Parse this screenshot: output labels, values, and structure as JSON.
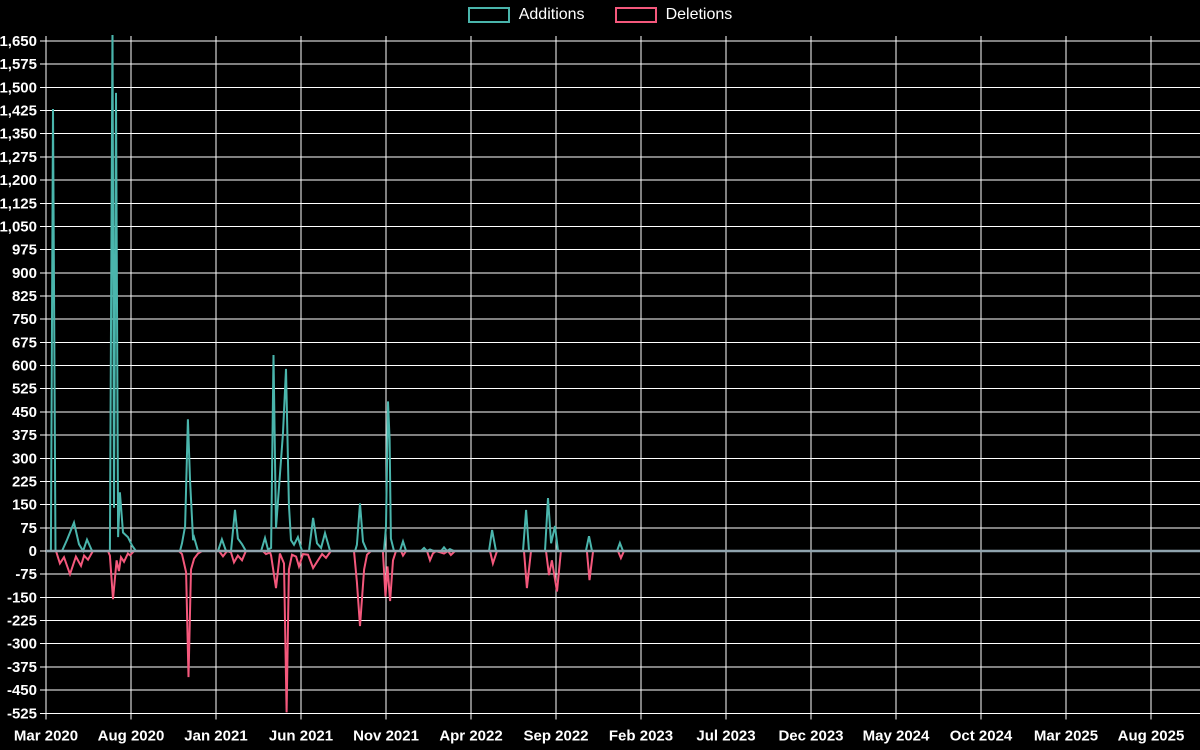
{
  "legend": {
    "additions_label": "Additions",
    "deletions_label": "Deletions"
  },
  "colors": {
    "background": "#000000",
    "grid": "#FFFFFF",
    "zero_axis": "#90A4AE",
    "text": "#FFFFFF",
    "additions": "#4AB5AC",
    "deletions": "#F4587C"
  },
  "chart_data": {
    "type": "line",
    "title": "",
    "legend_position": "top-center",
    "grid": true,
    "x_unit": "months since Mar 2020 (weekly samples)",
    "x_tick_labels": [
      "Mar 2020",
      "Aug 2020",
      "Jan 2021",
      "Jun 2021",
      "Nov 2021",
      "Apr 2022",
      "Sep 2022",
      "Feb 2023",
      "Jul 2023",
      "Dec 2023",
      "May 2024",
      "Oct 2024",
      "Mar 2025",
      "Aug 2025"
    ],
    "months_per_tick": 5,
    "y_axis": {
      "min": -525,
      "max": 1650,
      "step": 75
    },
    "series": [
      {
        "name": "Additions",
        "color_key": "additions",
        "points": [
          [
            0,
            0
          ],
          [
            0.29,
            0
          ],
          [
            0.41,
            1430
          ],
          [
            0.56,
            0
          ],
          [
            0.94,
            0
          ],
          [
            1.24,
            37
          ],
          [
            1.65,
            92
          ],
          [
            1.94,
            22
          ],
          [
            2.18,
            0
          ],
          [
            2.41,
            37
          ],
          [
            2.71,
            0
          ],
          [
            3.76,
            0
          ],
          [
            3.91,
            1700
          ],
          [
            4.0,
            140
          ],
          [
            4.12,
            1482
          ],
          [
            4.24,
            45
          ],
          [
            4.35,
            190
          ],
          [
            4.53,
            60
          ],
          [
            4.82,
            45
          ],
          [
            5.06,
            18
          ],
          [
            5.29,
            0
          ],
          [
            7.88,
            0
          ],
          [
            8.0,
            25
          ],
          [
            8.18,
            80
          ],
          [
            8.35,
            426
          ],
          [
            8.47,
            232
          ],
          [
            8.65,
            35
          ],
          [
            8.71,
            44
          ],
          [
            8.94,
            0
          ],
          [
            10.12,
            0
          ],
          [
            10.35,
            38
          ],
          [
            10.59,
            0
          ],
          [
            10.88,
            0
          ],
          [
            11.12,
            133
          ],
          [
            11.29,
            40
          ],
          [
            11.53,
            22
          ],
          [
            11.76,
            0
          ],
          [
            12.65,
            0
          ],
          [
            12.88,
            42
          ],
          [
            13.06,
            5
          ],
          [
            13.24,
            10
          ],
          [
            13.38,
            634
          ],
          [
            13.53,
            74
          ],
          [
            13.94,
            382
          ],
          [
            14.12,
            589
          ],
          [
            14.29,
            150
          ],
          [
            14.41,
            35
          ],
          [
            14.59,
            20
          ],
          [
            14.82,
            45
          ],
          [
            15.06,
            0
          ],
          [
            15.47,
            0
          ],
          [
            15.71,
            107
          ],
          [
            15.94,
            25
          ],
          [
            16.18,
            10
          ],
          [
            16.41,
            58
          ],
          [
            16.71,
            0
          ],
          [
            18.18,
            0
          ],
          [
            18.29,
            20
          ],
          [
            18.47,
            154
          ],
          [
            18.65,
            30
          ],
          [
            18.88,
            0
          ],
          [
            19.88,
            0
          ],
          [
            20.0,
            80
          ],
          [
            20.12,
            484
          ],
          [
            20.21,
            360
          ],
          [
            20.29,
            40
          ],
          [
            20.47,
            0
          ],
          [
            20.82,
            0
          ],
          [
            21.0,
            31
          ],
          [
            21.18,
            0
          ],
          [
            22.06,
            0
          ],
          [
            22.24,
            10
          ],
          [
            22.41,
            0
          ],
          [
            22.59,
            5
          ],
          [
            22.82,
            0
          ],
          [
            23.24,
            0
          ],
          [
            23.41,
            12
          ],
          [
            23.59,
            0
          ],
          [
            23.76,
            6
          ],
          [
            24.0,
            0
          ],
          [
            26.06,
            0
          ],
          [
            26.24,
            68
          ],
          [
            26.47,
            0
          ],
          [
            28.06,
            0
          ],
          [
            28.24,
            133
          ],
          [
            28.41,
            0
          ],
          [
            29.35,
            0
          ],
          [
            29.53,
            171
          ],
          [
            29.71,
            25
          ],
          [
            29.94,
            81
          ],
          [
            30.12,
            0
          ],
          [
            31.76,
            0
          ],
          [
            31.94,
            48
          ],
          [
            32.12,
            0
          ],
          [
            33.59,
            0
          ],
          [
            33.76,
            26
          ],
          [
            33.94,
            0
          ],
          [
            34.94,
            0
          ]
        ]
      },
      {
        "name": "Deletions",
        "color_key": "deletions",
        "points": [
          [
            0,
            0
          ],
          [
            0.59,
            0
          ],
          [
            0.82,
            -40
          ],
          [
            1.06,
            -20
          ],
          [
            1.41,
            -75
          ],
          [
            1.76,
            -18
          ],
          [
            2.06,
            -48
          ],
          [
            2.24,
            -15
          ],
          [
            2.47,
            -28
          ],
          [
            2.76,
            0
          ],
          [
            3.65,
            0
          ],
          [
            3.76,
            -15
          ],
          [
            3.94,
            -156
          ],
          [
            4.15,
            -30
          ],
          [
            4.29,
            -65
          ],
          [
            4.41,
            -20
          ],
          [
            4.59,
            -35
          ],
          [
            4.82,
            -8
          ],
          [
            4.94,
            -14
          ],
          [
            5.18,
            0
          ],
          [
            7.82,
            0
          ],
          [
            8.0,
            -10
          ],
          [
            8.24,
            -69
          ],
          [
            8.38,
            -408
          ],
          [
            8.53,
            -60
          ],
          [
            8.71,
            -25
          ],
          [
            8.94,
            -8
          ],
          [
            9.18,
            0
          ],
          [
            10.18,
            0
          ],
          [
            10.41,
            -17
          ],
          [
            10.65,
            0
          ],
          [
            10.88,
            -5
          ],
          [
            11.06,
            -37
          ],
          [
            11.29,
            -15
          ],
          [
            11.53,
            -30
          ],
          [
            11.76,
            0
          ],
          [
            12.76,
            0
          ],
          [
            12.94,
            -10
          ],
          [
            13.18,
            -5
          ],
          [
            13.24,
            -15
          ],
          [
            13.53,
            -120
          ],
          [
            13.76,
            -8
          ],
          [
            14.0,
            -40
          ],
          [
            14.15,
            -522
          ],
          [
            14.29,
            -60
          ],
          [
            14.47,
            -12
          ],
          [
            14.71,
            -18
          ],
          [
            14.88,
            -50
          ],
          [
            15.12,
            -10
          ],
          [
            15.41,
            -12
          ],
          [
            15.71,
            -55
          ],
          [
            16.0,
            -30
          ],
          [
            16.24,
            -10
          ],
          [
            16.47,
            -22
          ],
          [
            16.76,
            0
          ],
          [
            18.12,
            0
          ],
          [
            18.29,
            -100
          ],
          [
            18.47,
            -243
          ],
          [
            18.71,
            -60
          ],
          [
            18.88,
            -12
          ],
          [
            19.12,
            0
          ],
          [
            19.82,
            0
          ],
          [
            19.97,
            -148
          ],
          [
            20.09,
            -50
          ],
          [
            20.24,
            -162
          ],
          [
            20.41,
            -30
          ],
          [
            20.59,
            0
          ],
          [
            20.88,
            0
          ],
          [
            21.0,
            -15
          ],
          [
            21.18,
            0
          ],
          [
            22.41,
            0
          ],
          [
            22.59,
            -30
          ],
          [
            22.76,
            -8
          ],
          [
            22.94,
            0
          ],
          [
            23.41,
            -8
          ],
          [
            23.65,
            0
          ],
          [
            23.82,
            -13
          ],
          [
            24.06,
            0
          ],
          [
            26.12,
            0
          ],
          [
            26.29,
            -40
          ],
          [
            26.53,
            0
          ],
          [
            28.12,
            0
          ],
          [
            28.29,
            -120
          ],
          [
            28.53,
            0
          ],
          [
            29.41,
            0
          ],
          [
            29.59,
            -78
          ],
          [
            29.76,
            -30
          ],
          [
            30.06,
            -131
          ],
          [
            30.29,
            0
          ],
          [
            31.82,
            0
          ],
          [
            31.97,
            -94
          ],
          [
            32.18,
            0
          ],
          [
            33.65,
            0
          ],
          [
            33.82,
            -23
          ],
          [
            34.0,
            0
          ],
          [
            34.94,
            0
          ]
        ]
      }
    ]
  }
}
